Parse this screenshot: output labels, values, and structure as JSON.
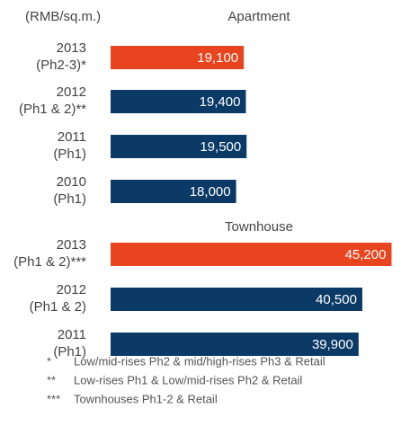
{
  "unit_label": "(RMB/sq.m.)",
  "chart_data": [
    {
      "type": "bar",
      "orientation": "horizontal",
      "title": "Apartment",
      "categories": [
        [
          "2013",
          "(Ph2-3)*"
        ],
        [
          "2012",
          "(Ph1 & 2)**"
        ],
        [
          "2011",
          "(Ph1)"
        ],
        [
          "2010",
          "(Ph1)"
        ]
      ],
      "values": [
        19100,
        19400,
        19500,
        18000
      ],
      "value_labels": [
        "19,100",
        "19,400",
        "19,500",
        "18,000"
      ],
      "colors": [
        "#e8441f",
        "#0b3a67",
        "#0b3a67",
        "#0b3a67"
      ],
      "xlim": [
        0,
        41000
      ]
    },
    {
      "type": "bar",
      "orientation": "horizontal",
      "title": "Townhouse",
      "categories": [
        [
          "2013",
          "(Ph1 & 2)***"
        ],
        [
          "2012",
          "(Ph1 & 2)"
        ],
        [
          "2011",
          "(Ph1)"
        ]
      ],
      "values": [
        45200,
        40500,
        39900
      ],
      "value_labels": [
        "45,200",
        "40,500",
        "39,900"
      ],
      "colors": [
        "#e8441f",
        "#0b3a67",
        "#0b3a67"
      ],
      "xlim": [
        0,
        46000
      ]
    }
  ],
  "footnotes": [
    {
      "marker": "*",
      "text": "Low/mid-rises Ph2 & mid/high-rises Ph3 & Retail"
    },
    {
      "marker": "**",
      "text": "Low-rises Ph1 & Low/mid-rises Ph2 & Retail"
    },
    {
      "marker": "***",
      "text": "Townhouses Ph1-2 & Retail"
    }
  ]
}
